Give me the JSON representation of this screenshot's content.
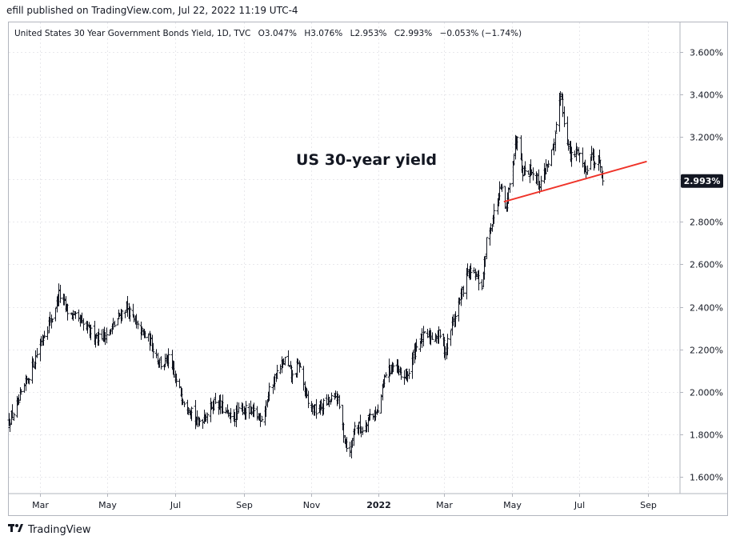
{
  "header": {
    "publisher_line": "efill published on TradingView.com, Jul 22, 2022 11:19 UTC-4"
  },
  "legend": {
    "symbol": "United States 30 Year Government Bonds Yield, 1D, TVC",
    "open": "O3.047%",
    "high": "H3.076%",
    "low": "L2.953%",
    "close": "C2.993%",
    "change": "−0.053% (−1.74%)"
  },
  "footer": {
    "brand": "TradingView",
    "logo_icon": "tradingview-logo-icon"
  },
  "chart_data": {
    "type": "ohlc-bar",
    "title": "US 30-year yield",
    "y_unit": "%",
    "ylim": [
      1.52,
      3.74
    ],
    "yticks": [
      "3.600%",
      "3.400%",
      "3.200%",
      "3.000%",
      "2.800%",
      "2.600%",
      "2.400%",
      "2.200%",
      "2.000%",
      "1.800%",
      "1.600%"
    ],
    "ytick_values": [
      3.6,
      3.4,
      3.2,
      3.0,
      2.8,
      2.6,
      2.4,
      2.2,
      2.0,
      1.8,
      1.6
    ],
    "xlim": [
      "2021-02-01",
      "2022-09-30"
    ],
    "xticks": [
      {
        "label": "Mar",
        "date": "2021-03-01"
      },
      {
        "label": "May",
        "date": "2021-05-01"
      },
      {
        "label": "Jul",
        "date": "2021-07-01"
      },
      {
        "label": "Sep",
        "date": "2021-09-01"
      },
      {
        "label": "Nov",
        "date": "2021-11-01"
      },
      {
        "label": "2022",
        "date": "2022-01-01"
      },
      {
        "label": "Mar",
        "date": "2022-03-01"
      },
      {
        "label": "May",
        "date": "2022-05-01"
      },
      {
        "label": "Jul",
        "date": "2022-07-01"
      },
      {
        "label": "Sep",
        "date": "2022-09-01"
      }
    ],
    "last_price_label": "2.993%",
    "last_price": 2.993,
    "closes": [
      {
        "date": "2021-02-01",
        "close": 1.86
      },
      {
        "date": "2021-02-10",
        "close": 1.95
      },
      {
        "date": "2021-02-19",
        "close": 2.08
      },
      {
        "date": "2021-02-26",
        "close": 2.18
      },
      {
        "date": "2021-03-05",
        "close": 2.28
      },
      {
        "date": "2021-03-12",
        "close": 2.35
      },
      {
        "date": "2021-03-18",
        "close": 2.46
      },
      {
        "date": "2021-03-26",
        "close": 2.38
      },
      {
        "date": "2021-04-05",
        "close": 2.33
      },
      {
        "date": "2021-04-16",
        "close": 2.28
      },
      {
        "date": "2021-04-23",
        "close": 2.26
      },
      {
        "date": "2021-05-03",
        "close": 2.28
      },
      {
        "date": "2021-05-12",
        "close": 2.36
      },
      {
        "date": "2021-05-18",
        "close": 2.4
      },
      {
        "date": "2021-05-28",
        "close": 2.3
      },
      {
        "date": "2021-06-08",
        "close": 2.24
      },
      {
        "date": "2021-06-18",
        "close": 2.13
      },
      {
        "date": "2021-06-25",
        "close": 2.15
      },
      {
        "date": "2021-07-02",
        "close": 2.04
      },
      {
        "date": "2021-07-09",
        "close": 1.96
      },
      {
        "date": "2021-07-16",
        "close": 1.92
      },
      {
        "date": "2021-07-20",
        "close": 1.85
      },
      {
        "date": "2021-07-30",
        "close": 1.9
      },
      {
        "date": "2021-08-06",
        "close": 1.96
      },
      {
        "date": "2021-08-13",
        "close": 1.92
      },
      {
        "date": "2021-08-20",
        "close": 1.87
      },
      {
        "date": "2021-08-31",
        "close": 1.92
      },
      {
        "date": "2021-09-08",
        "close": 1.9
      },
      {
        "date": "2021-09-17",
        "close": 1.88
      },
      {
        "date": "2021-09-24",
        "close": 2.0
      },
      {
        "date": "2021-09-30",
        "close": 2.08
      },
      {
        "date": "2021-10-08",
        "close": 2.15
      },
      {
        "date": "2021-10-15",
        "close": 2.07
      },
      {
        "date": "2021-10-21",
        "close": 2.13
      },
      {
        "date": "2021-10-29",
        "close": 1.94
      },
      {
        "date": "2021-11-05",
        "close": 1.91
      },
      {
        "date": "2021-11-12",
        "close": 1.94
      },
      {
        "date": "2021-11-18",
        "close": 1.96
      },
      {
        "date": "2021-11-24",
        "close": 1.98
      },
      {
        "date": "2021-12-01",
        "close": 1.78
      },
      {
        "date": "2021-12-06",
        "close": 1.71
      },
      {
        "date": "2021-12-10",
        "close": 1.85
      },
      {
        "date": "2021-12-17",
        "close": 1.82
      },
      {
        "date": "2021-12-23",
        "close": 1.89
      },
      {
        "date": "2021-12-31",
        "close": 1.9
      },
      {
        "date": "2022-01-07",
        "close": 2.09
      },
      {
        "date": "2022-01-14",
        "close": 2.12
      },
      {
        "date": "2022-01-21",
        "close": 2.07
      },
      {
        "date": "2022-01-28",
        "close": 2.09
      },
      {
        "date": "2022-02-04",
        "close": 2.23
      },
      {
        "date": "2022-02-11",
        "close": 2.26
      },
      {
        "date": "2022-02-18",
        "close": 2.26
      },
      {
        "date": "2022-02-25",
        "close": 2.27
      },
      {
        "date": "2022-03-02",
        "close": 2.19
      },
      {
        "date": "2022-03-08",
        "close": 2.32
      },
      {
        "date": "2022-03-15",
        "close": 2.43
      },
      {
        "date": "2022-03-22",
        "close": 2.56
      },
      {
        "date": "2022-03-28",
        "close": 2.55
      },
      {
        "date": "2022-04-04",
        "close": 2.5
      },
      {
        "date": "2022-04-08",
        "close": 2.71
      },
      {
        "date": "2022-04-14",
        "close": 2.82
      },
      {
        "date": "2022-04-21",
        "close": 2.96
      },
      {
        "date": "2022-04-26",
        "close": 2.85
      },
      {
        "date": "2022-04-29",
        "close": 3.0
      },
      {
        "date": "2022-05-06",
        "close": 3.22
      },
      {
        "date": "2022-05-11",
        "close": 3.04
      },
      {
        "date": "2022-05-18",
        "close": 3.05
      },
      {
        "date": "2022-05-26",
        "close": 2.98
      },
      {
        "date": "2022-06-01",
        "close": 3.06
      },
      {
        "date": "2022-06-08",
        "close": 3.15
      },
      {
        "date": "2022-06-14",
        "close": 3.42
      },
      {
        "date": "2022-06-17",
        "close": 3.28
      },
      {
        "date": "2022-06-23",
        "close": 3.1
      },
      {
        "date": "2022-06-30",
        "close": 3.14
      },
      {
        "date": "2022-07-06",
        "close": 3.04
      },
      {
        "date": "2022-07-12",
        "close": 3.12
      },
      {
        "date": "2022-07-15",
        "close": 3.08
      },
      {
        "date": "2022-07-20",
        "close": 3.08
      },
      {
        "date": "2022-07-22",
        "close": 2.993
      }
    ],
    "trendline": {
      "from": {
        "date": "2022-04-24",
        "value": 2.895
      },
      "to": {
        "date": "2022-08-31",
        "value": 3.085
      },
      "color": "#ef3329"
    },
    "colors": {
      "bars": "#131722",
      "grid": "#e8e8ec",
      "axis_text": "#131722",
      "price_label_bg": "#131722",
      "price_label_text": "#ffffff"
    }
  }
}
